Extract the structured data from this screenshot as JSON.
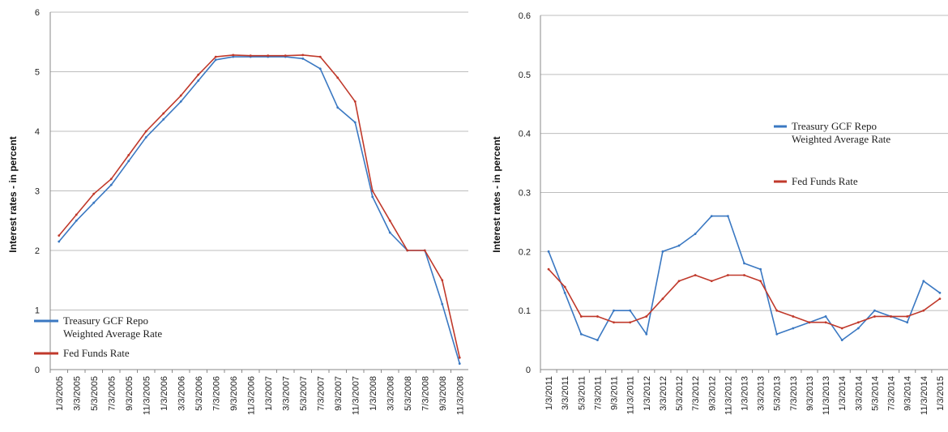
{
  "chart_data": [
    {
      "type": "line",
      "title": "",
      "ylabel": "Interest rates - in percent",
      "xlabel": "",
      "ylim": [
        0,
        6
      ],
      "yticks": [
        "0",
        "1",
        "2",
        "3",
        "4",
        "5",
        "6"
      ],
      "grid": true,
      "legend_position": "bottom-left",
      "categories": [
        "1/3/2005",
        "3/3/2005",
        "5/3/2005",
        "7/3/2005",
        "9/3/2005",
        "11/3/2005",
        "1/3/2006",
        "3/3/2006",
        "5/3/2006",
        "7/3/2006",
        "9/3/2006",
        "11/3/2006",
        "1/3/2007",
        "3/3/2007",
        "5/3/2007",
        "7/3/2007",
        "9/3/2007",
        "11/3/2007",
        "1/3/2008",
        "3/3/2008",
        "5/3/2008",
        "7/3/2008",
        "9/3/2008",
        "11/3/2008"
      ],
      "series": [
        {
          "name": "Treasury GCF Repo Weighted Average Rate",
          "color": "#3a78c2",
          "values": [
            2.15,
            2.5,
            2.8,
            3.1,
            3.5,
            3.9,
            4.2,
            4.5,
            4.85,
            5.2,
            5.25,
            5.25,
            5.25,
            5.25,
            5.22,
            5.05,
            4.4,
            4.15,
            2.9,
            2.3,
            2.0,
            2.0,
            1.1,
            0.1
          ]
        },
        {
          "name": "Fed Funds Rate",
          "color": "#c0392b",
          "values": [
            2.25,
            2.6,
            2.95,
            3.2,
            3.6,
            4.0,
            4.3,
            4.6,
            4.95,
            5.25,
            5.28,
            5.27,
            5.27,
            5.27,
            5.28,
            5.25,
            4.9,
            4.5,
            3.0,
            2.5,
            2.0,
            2.0,
            1.5,
            0.2
          ]
        }
      ],
      "legend": {
        "entries": [
          {
            "lines": [
              "Treasury GCF Repo",
              "Weighted Average Rate"
            ],
            "color": "#3a78c2"
          },
          {
            "lines": [
              "Fed Funds Rate"
            ],
            "color": "#c0392b"
          }
        ]
      }
    },
    {
      "type": "line",
      "title": "",
      "ylabel": "Interest rates - in percent",
      "xlabel": "",
      "ylim": [
        0,
        0.6
      ],
      "yticks": [
        "0",
        "0.1",
        "0.2",
        "0.3",
        "0.4",
        "0.5",
        "0.6"
      ],
      "grid": true,
      "legend_position": "right",
      "categories": [
        "1/3/2011",
        "3/3/2011",
        "5/3/2011",
        "7/3/2011",
        "9/3/2011",
        "11/3/2011",
        "1/3/2012",
        "3/3/2012",
        "5/3/2012",
        "7/3/2012",
        "9/3/2012",
        "11/3/2012",
        "1/3/2013",
        "3/3/2013",
        "5/3/2013",
        "7/3/2013",
        "9/3/2013",
        "11/3/2013",
        "1/3/2014",
        "3/3/2014",
        "5/3/2014",
        "7/3/2014",
        "9/3/2014",
        "11/3/2014",
        "1/3/2015"
      ],
      "series": [
        {
          "name": "Treasury GCF Repo Weighted Average Rate",
          "color": "#3a78c2",
          "values": [
            0.2,
            0.13,
            0.06,
            0.05,
            0.1,
            0.1,
            0.06,
            0.2,
            0.21,
            0.23,
            0.26,
            0.26,
            0.18,
            0.17,
            0.06,
            0.07,
            0.08,
            0.09,
            0.05,
            0.07,
            0.1,
            0.09,
            0.08,
            0.15,
            0.13
          ]
        },
        {
          "name": "Fed Funds Rate",
          "color": "#c0392b",
          "values": [
            0.17,
            0.14,
            0.09,
            0.09,
            0.08,
            0.08,
            0.09,
            0.12,
            0.15,
            0.16,
            0.15,
            0.16,
            0.16,
            0.15,
            0.1,
            0.09,
            0.08,
            0.08,
            0.07,
            0.08,
            0.09,
            0.09,
            0.09,
            0.1,
            0.12
          ]
        }
      ],
      "legend": {
        "entries": [
          {
            "lines": [
              "Treasury GCF Repo",
              "Weighted Average Rate"
            ],
            "color": "#3a78c2"
          },
          {
            "lines": [
              "Fed Funds Rate"
            ],
            "color": "#c0392b"
          }
        ]
      }
    }
  ]
}
